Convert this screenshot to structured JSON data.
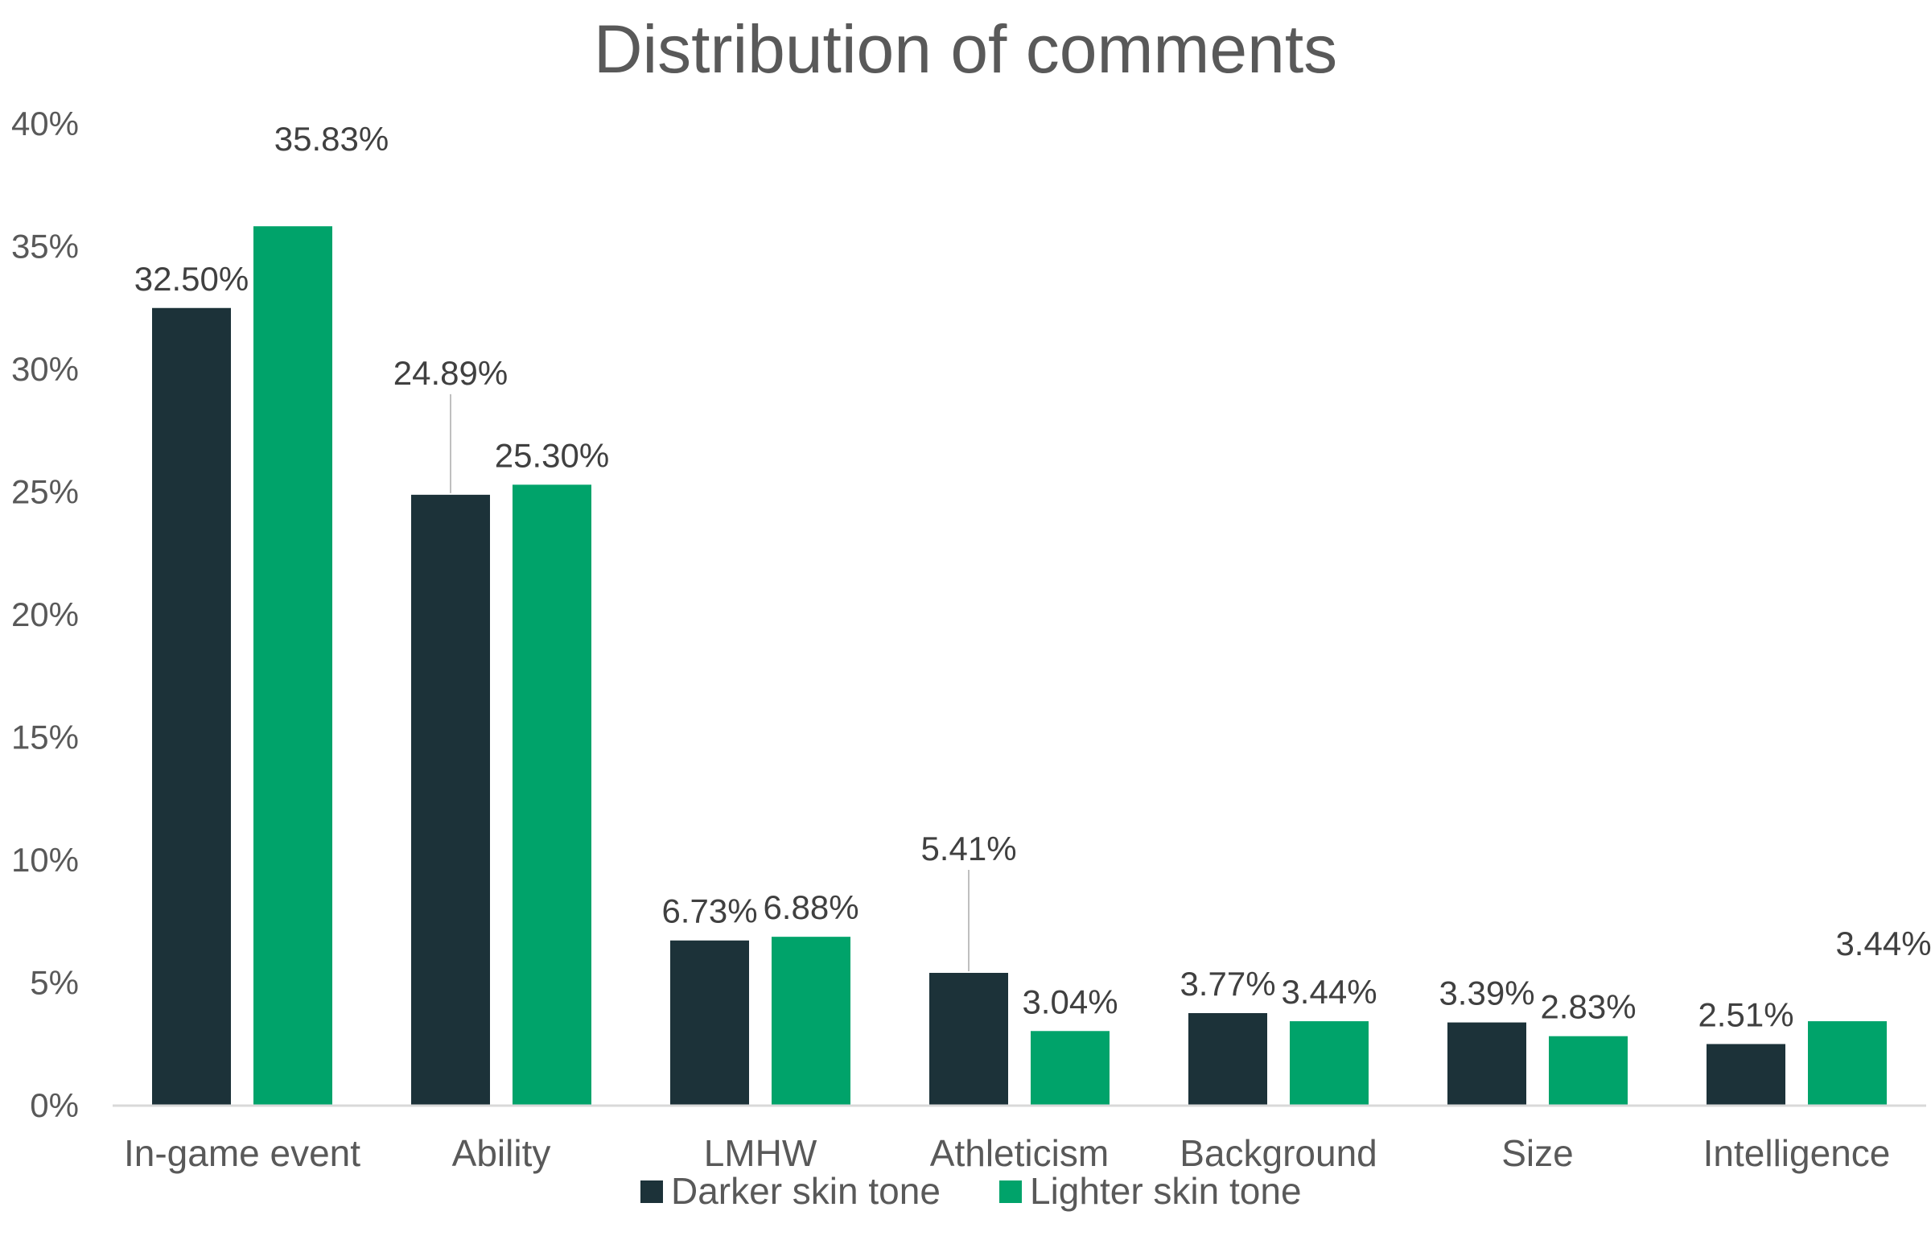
{
  "chart_data": {
    "type": "bar",
    "title": "Distribution of comments",
    "xlabel": "",
    "ylabel": "",
    "ylim": [
      0,
      40
    ],
    "yticks": [
      "0%",
      "5%",
      "10%",
      "15%",
      "20%",
      "25%",
      "30%",
      "35%",
      "40%"
    ],
    "ytick_values": [
      0,
      5,
      10,
      15,
      20,
      25,
      30,
      35,
      40
    ],
    "grid": false,
    "legend_position": "bottom",
    "categories": [
      "In-game event",
      "Ability",
      "LMHW",
      "Athleticism",
      "Background",
      "Size",
      "Intelligence"
    ],
    "series": [
      {
        "name": "Darker skin tone",
        "color": "#1c3239",
        "values": [
          32.5,
          24.89,
          6.73,
          5.41,
          3.77,
          3.39,
          2.51
        ],
        "labels": [
          "32.50%",
          "24.89%",
          "6.73%",
          "5.41%",
          "3.77%",
          "3.39%",
          "2.51%"
        ]
      },
      {
        "name": "Lighter skin tone",
        "color": "#00a36a",
        "values": [
          35.83,
          25.3,
          6.88,
          3.04,
          3.44,
          2.83,
          3.44
        ],
        "labels": [
          "35.83%",
          "25.30%",
          "6.88%",
          "3.04%",
          "3.44%",
          "2.83%",
          "3.44%"
        ]
      }
    ]
  }
}
